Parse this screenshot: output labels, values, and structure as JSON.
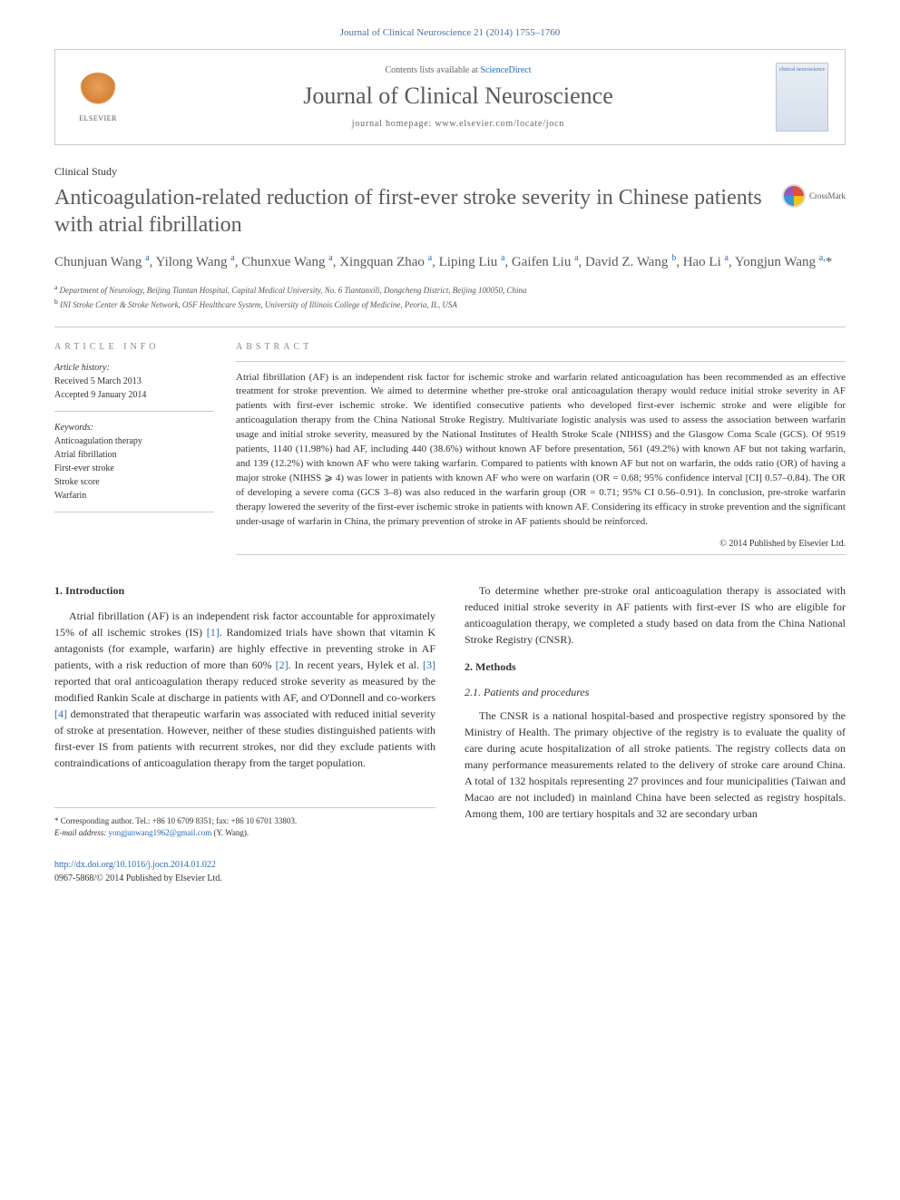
{
  "citation": "Journal of Clinical Neuroscience 21 (2014) 1755–1760",
  "header": {
    "elsevier_label": "ELSEVIER",
    "contents_prefix": "Contents lists available at ",
    "contents_link_text": "ScienceDirect",
    "journal_name": "Journal of Clinical Neuroscience",
    "homepage_prefix": "journal homepage: ",
    "homepage_url": "www.elsevier.com/locate/jocn",
    "cover_text": "clinical neuroscience"
  },
  "article_type": "Clinical Study",
  "title": "Anticoagulation-related reduction of first-ever stroke severity in Chinese patients with atrial fibrillation",
  "crossmark_label": "CrossMark",
  "authors_html": "Chunjuan Wang <sup>a</sup>, Yilong Wang <sup>a</sup>, Chunxue Wang <sup>a</sup>, Xingquan Zhao <sup>a</sup>, Liping Liu <sup>a</sup>, Gaifen Liu <sup>a</sup>, David Z. Wang <sup>b</sup>, Hao Li <sup>a</sup>, Yongjun Wang <sup>a,</sup>*",
  "affiliations": [
    "Department of Neurology, Beijing Tiantan Hospital, Capital Medical University, No. 6 Tiantanxili, Dongcheng District, Beijing 100050, China",
    "INI Stroke Center & Stroke Network, OSF Healthcare System, University of Illinois College of Medicine, Peoria, IL, USA"
  ],
  "info": {
    "section_label": "ARTICLE INFO",
    "history_label": "Article history:",
    "received": "Received 5 March 2013",
    "accepted": "Accepted 9 January 2014",
    "keywords_label": "Keywords:",
    "keywords": [
      "Anticoagulation therapy",
      "Atrial fibrillation",
      "First-ever stroke",
      "Stroke score",
      "Warfarin"
    ]
  },
  "abstract": {
    "section_label": "ABSTRACT",
    "text": "Atrial fibrillation (AF) is an independent risk factor for ischemic stroke and warfarin related anticoagulation has been recommended as an effective treatment for stroke prevention. We aimed to determine whether pre-stroke oral anticoagulation therapy would reduce initial stroke severity in AF patients with first-ever ischemic stroke. We identified consecutive patients who developed first-ever ischemic stroke and were eligible for anticoagulation therapy from the China National Stroke Registry. Multivariate logistic analysis was used to assess the association between warfarin usage and initial stroke severity, measured by the National Institutes of Health Stroke Scale (NIHSS) and the Glasgow Coma Scale (GCS). Of 9519 patients, 1140 (11.98%) had AF, including 440 (38.6%) without known AF before presentation, 561 (49.2%) with known AF but not taking warfarin, and 139 (12.2%) with known AF who were taking warfarin. Compared to patients with known AF but not on warfarin, the odds ratio (OR) of having a major stroke (NIHSS ⩾ 4) was lower in patients with known AF who were on warfarin (OR = 0.68; 95% confidence interval [CI] 0.57–0.84). The OR of developing a severe coma (GCS 3–8) was also reduced in the warfarin group (OR = 0.71; 95% CI 0.56–0.91). In conclusion, pre-stroke warfarin therapy lowered the severity of the first-ever ischemic stroke in patients with known AF. Considering its efficacy in stroke prevention and the significant under-usage of warfarin in China, the primary prevention of stroke in AF patients should be reinforced.",
    "copyright": "© 2014 Published by Elsevier Ltd."
  },
  "body": {
    "col1": {
      "h1": "1. Introduction",
      "p1": "Atrial fibrillation (AF) is an independent risk factor accountable for approximately 15% of all ischemic strokes (IS) [1]. Randomized trials have shown that vitamin K antagonists (for example, warfarin) are highly effective in preventing stroke in AF patients, with a risk reduction of more than 60% [2]. In recent years, Hylek et al. [3] reported that oral anticoagulation therapy reduced stroke severity as measured by the modified Rankin Scale at discharge in patients with AF, and O'Donnell and co-workers [4] demonstrated that therapeutic warfarin was associated with reduced initial severity of stroke at presentation. However, neither of these studies distinguished patients with first-ever IS from patients with recurrent strokes, nor did they exclude patients with contraindications of anticoagulation therapy from the target population."
    },
    "col2": {
      "p1": "To determine whether pre-stroke oral anticoagulation therapy is associated with reduced initial stroke severity in AF patients with first-ever IS who are eligible for anticoagulation therapy, we completed a study based on data from the China National Stroke Registry (CNSR).",
      "h2": "2. Methods",
      "h2_1": "2.1. Patients and procedures",
      "p2": "The CNSR is a national hospital-based and prospective registry sponsored by the Ministry of Health. The primary objective of the registry is to evaluate the quality of care during acute hospitalization of all stroke patients. The registry collects data on many performance measurements related to the delivery of stroke care around China. A total of 132 hospitals representing 27 provinces and four municipalities (Taiwan and Macao are not included) in mainland China have been selected as registry hospitals. Among them, 100 are tertiary hospitals and 32 are secondary urban"
    }
  },
  "footnote": {
    "corresponding": "* Corresponding author. Tel.: +86 10 6709 8351; fax: +86 10 6701 33803.",
    "email_label": "E-mail address: ",
    "email": "yongjunwang1962@gmail.com",
    "email_suffix": " (Y. Wang)."
  },
  "footer": {
    "doi": "http://dx.doi.org/10.1016/j.jocn.2014.01.022",
    "issn_line": "0967-5868/© 2014 Published by Elsevier Ltd."
  },
  "colors": {
    "link": "#2a6ab5",
    "text": "#333333",
    "muted": "#888888",
    "border": "#cccccc"
  }
}
